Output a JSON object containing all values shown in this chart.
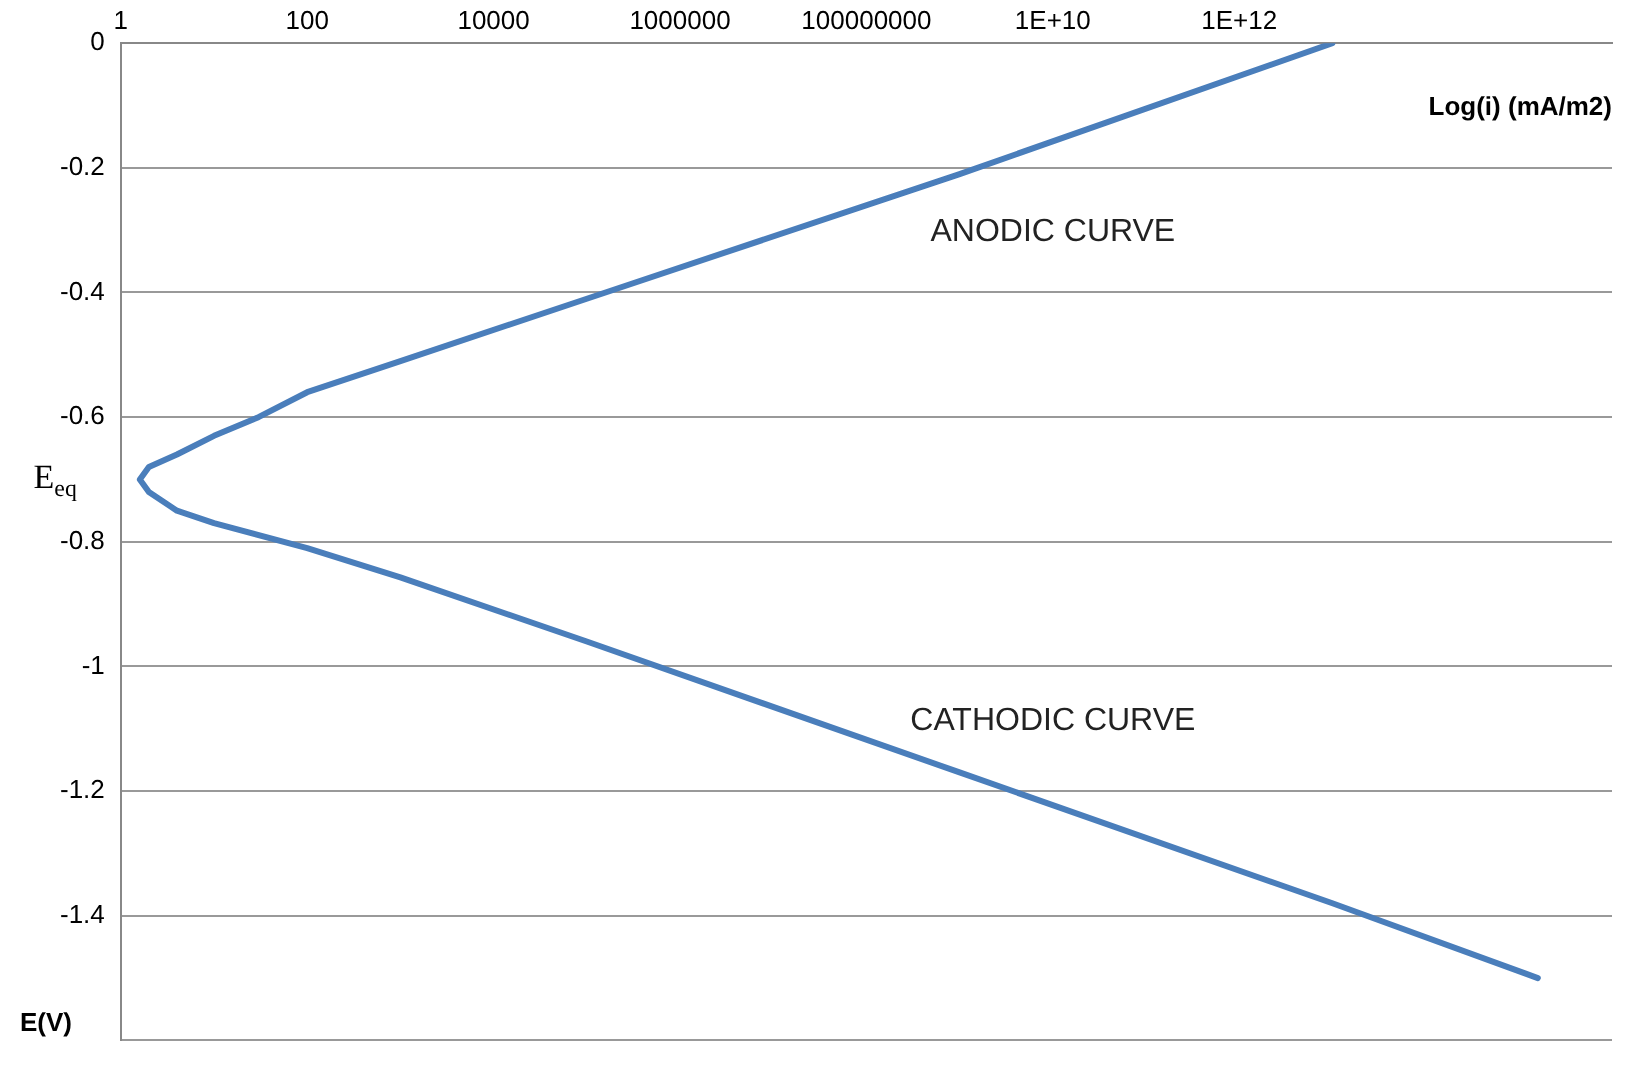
{
  "chart_data": {
    "type": "line",
    "xlabel": "Log(i) (mA/m2)",
    "ylabel": "E(V)",
    "log": "x",
    "xlim": [
      1,
      1e+16
    ],
    "xticks": [
      {
        "value": 1,
        "label": "1"
      },
      {
        "value": 100,
        "label": "100"
      },
      {
        "value": 10000,
        "label": "10000"
      },
      {
        "value": 1000000,
        "label": "1000000"
      },
      {
        "value": 100000000,
        "label": "100000000"
      },
      {
        "value": 10000000000,
        "label": "1E+10"
      },
      {
        "value": 1000000000000,
        "label": "1E+12"
      }
    ],
    "ylim": [
      -1.6,
      0
    ],
    "yticks": [
      0,
      -0.2,
      -0.4,
      -0.6,
      -0.8,
      -1,
      -1.2,
      -1.4,
      {
        "value": -1.6,
        "label": null
      }
    ],
    "grid": "y",
    "legend": false,
    "marker": "none",
    "line_style": "solid",
    "series": [
      {
        "color": "#4a7ebb",
        "x": [
          10000000000000.0,
          1000000000.0,
          100000.0,
          1000,
          100,
          30,
          10,
          4,
          2,
          1.6,
          2,
          4,
          10,
          100,
          1000,
          100000,
          1000000000.0,
          10000000000000.0,
          1600000000000000.0
        ],
        "values": [
          0,
          -0.21,
          -0.41,
          -0.51,
          -0.56,
          -0.6,
          -0.63,
          -0.66,
          -0.68,
          -0.7,
          -0.72,
          -0.75,
          -0.77,
          -0.81,
          -0.857,
          -0.96,
          -1.17,
          -1.38,
          -1.5
        ]
      }
    ],
    "annotations": [
      "ANODIC CURVE",
      "CATHODIC CURVE",
      "E$_{eq}$"
    ]
  }
}
